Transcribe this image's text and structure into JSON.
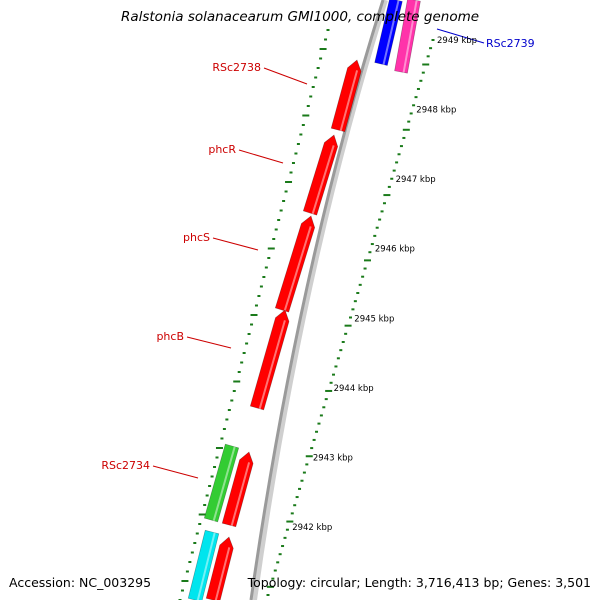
{
  "title": "Ralstonia solanacearum GMI1000, complete genome",
  "footer": {
    "accession": "Accession: NC_003295",
    "summary": "Topology: circular; Length: 3,716,413 bp; Genes: 3,501"
  },
  "colors": {
    "backbone": "#9a9a9a",
    "tick": "#1a7a1a",
    "forward_gene": "#ff0000",
    "reverse_gene_label": "#cc0000",
    "blue_gene": "#0000ff",
    "pink_gene": "#ff33aa",
    "green_feature": "#33cc33",
    "cyan_feature": "#00e5ee"
  },
  "scale_labels": [
    {
      "kbp": 2942,
      "text": "2942 kbp"
    },
    {
      "kbp": 2943,
      "text": "2943 kbp"
    },
    {
      "kbp": 2944,
      "text": "2944 kbp"
    },
    {
      "kbp": 2945,
      "text": "2945 kbp"
    },
    {
      "kbp": 2946,
      "text": "2946 kbp"
    },
    {
      "kbp": 2947,
      "text": "2947 kbp"
    },
    {
      "kbp": 2948,
      "text": "2948 kbp"
    },
    {
      "kbp": 2949,
      "text": "2949 kbp"
    }
  ],
  "gene_labels": [
    {
      "text": "RSc2738",
      "color": "#cc0000"
    },
    {
      "text": "phcR",
      "color": "#cc0000"
    },
    {
      "text": "phcS",
      "color": "#cc0000"
    },
    {
      "text": "phcB",
      "color": "#cc0000"
    },
    {
      "text": "RSc2734",
      "color": "#cc0000"
    },
    {
      "text": "RSc2739",
      "color": "#0000cc"
    }
  ]
}
